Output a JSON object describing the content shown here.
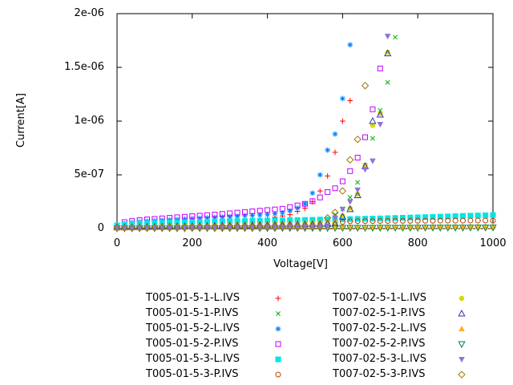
{
  "figure": {
    "background": "#ffffff",
    "axis_color": "#000000"
  },
  "chart_data": {
    "type": "scatter",
    "title": "",
    "xlabel": "Voltage[V]",
    "ylabel": "Current[A]",
    "xlim": [
      0,
      1000
    ],
    "ylim": [
      0,
      2e-06
    ],
    "x_ticks": [
      0,
      200,
      400,
      600,
      800,
      1000
    ],
    "x_tick_labels": [
      "0",
      "200",
      "400",
      "600",
      "800",
      "1000"
    ],
    "y_ticks": [
      0,
      5e-07,
      1e-06,
      1.5e-06,
      2e-06
    ],
    "y_tick_labels": [
      "0",
      "5e-07",
      "1e-06",
      "1.5e-06",
      "2e-06"
    ],
    "grid": false,
    "legend_position": "below-plot-two-columns",
    "values_unit": "nA (1e-9 A)",
    "series": [
      {
        "name": "T005-01-5-1-L.IVS",
        "marker": "plus",
        "color": "#ff0000",
        "v_start": 0,
        "v_step": 20,
        "values_nA": [
          10,
          25,
          32,
          38,
          43,
          47,
          51,
          55,
          58,
          61,
          64,
          67,
          70,
          73,
          76,
          79,
          82,
          85,
          88,
          92,
          96,
          105,
          118,
          130,
          160,
          190,
          250,
          350,
          490,
          710,
          1000,
          1190
        ]
      },
      {
        "name": "T005-01-5-1-P.IVS",
        "marker": "cross",
        "color": "#00b400",
        "v_start": 0,
        "v_step": 20,
        "values_nA": [
          8,
          18,
          22,
          25,
          27,
          29,
          31,
          33,
          35,
          37,
          39,
          41,
          43,
          45,
          47,
          49,
          51,
          53,
          55,
          57,
          59,
          61,
          63,
          65,
          67,
          69,
          71,
          74,
          90,
          130,
          185,
          290,
          430,
          590,
          840,
          1100,
          1360,
          1780
        ]
      },
      {
        "name": "T005-01-5-2-L.IVS",
        "marker": "asterisk",
        "color": "#0080ff",
        "v_start": 0,
        "v_step": 20,
        "values_nA": [
          20,
          45,
          55,
          62,
          68,
          72,
          76,
          80,
          84,
          88,
          92,
          96,
          100,
          104,
          108,
          112,
          116,
          120,
          124,
          128,
          132,
          138,
          147,
          165,
          190,
          230,
          330,
          500,
          730,
          880,
          1210,
          1710
        ]
      },
      {
        "name": "T005-01-5-2-P.IVS",
        "marker": "square-open",
        "color": "#c000ff",
        "v_start": 0,
        "v_step": 20,
        "values_nA": [
          25,
          60,
          70,
          78,
          85,
          90,
          95,
          100,
          105,
          110,
          115,
          120,
          125,
          130,
          136,
          142,
          148,
          154,
          160,
          166,
          172,
          178,
          184,
          200,
          215,
          230,
          255,
          290,
          340,
          375,
          440,
          535,
          660,
          850,
          1110,
          1490
        ]
      },
      {
        "name": "T005-01-5-3-L.IVS",
        "marker": "square-filled",
        "color": "#00e5e5",
        "v_start": 0,
        "v_step": 20,
        "values_nA": [
          30,
          40,
          44,
          47,
          50,
          52,
          54,
          56,
          58,
          60,
          61,
          62,
          64,
          65,
          66,
          68,
          69,
          70,
          72,
          73,
          74,
          76,
          77,
          78,
          80,
          81,
          82,
          84,
          85,
          86,
          88,
          89,
          90,
          92,
          93,
          95,
          97,
          99,
          101,
          103,
          105,
          107,
          109,
          111,
          113,
          116,
          118,
          120,
          122,
          124,
          126
        ]
      },
      {
        "name": "T005-01-5-3-P.IVS",
        "marker": "circle-open",
        "color": "#c04000",
        "v_start": 0,
        "v_step": 20,
        "values_nA": [
          8,
          8,
          9,
          9,
          10,
          10,
          10,
          11,
          11,
          12,
          12,
          12,
          13,
          13,
          14,
          14,
          14,
          15,
          15,
          16,
          16,
          16,
          17,
          17,
          18,
          18,
          18,
          19,
          40,
          55,
          62,
          68,
          69,
          70,
          70,
          71,
          71,
          72,
          72,
          72,
          73,
          73,
          73,
          74,
          74,
          74,
          74,
          75,
          75,
          75,
          75
        ]
      },
      {
        "name": "T007-02-5-1-L.IVS",
        "marker": "circle-filled",
        "color": "#d8d800",
        "v_start": 0,
        "v_step": 20,
        "values_nA": [
          12,
          14,
          15,
          17,
          18,
          20,
          22,
          23,
          25,
          26,
          28,
          30,
          31,
          33,
          34,
          36,
          38,
          39,
          41,
          42,
          44,
          46,
          47,
          49,
          50,
          52,
          54,
          55,
          57,
          58,
          120,
          190,
          320,
          590,
          960,
          1070,
          1640
        ]
      },
      {
        "name": "T007-02-5-1-P.IVS",
        "marker": "triangle-up-open",
        "color": "#3333b4",
        "v_start": 0,
        "v_step": 20,
        "values_nA": [
          10,
          11,
          12,
          14,
          15,
          16,
          17,
          18,
          20,
          21,
          22,
          23,
          24,
          26,
          27,
          28,
          29,
          30,
          32,
          33,
          34,
          35,
          36,
          38,
          39,
          40,
          41,
          42,
          44,
          45,
          110,
          180,
          310,
          580,
          1000,
          1060,
          1630
        ]
      },
      {
        "name": "T007-02-5-2-L.IVS",
        "marker": "triangle-up-filled",
        "color": "#ffae20",
        "v_start": 0,
        "v_step": 20,
        "values_nA": [
          5,
          5,
          6,
          6,
          6,
          7,
          7,
          7,
          7,
          8,
          8,
          8,
          9,
          9,
          9,
          10,
          10,
          10,
          10,
          11,
          11,
          11,
          12,
          12,
          12,
          13,
          13,
          13,
          13,
          14,
          14,
          14,
          15,
          15,
          15,
          16,
          16,
          16,
          16,
          17,
          17,
          17,
          18,
          18,
          18,
          19,
          19,
          19,
          19,
          20,
          20
        ]
      },
      {
        "name": "T007-02-5-2-P.IVS",
        "marker": "triangle-down-open",
        "color": "#008040",
        "v_start": 0,
        "v_step": 20,
        "values_nA": [
          2,
          2,
          2,
          2,
          3,
          3,
          3,
          3,
          3,
          3,
          4,
          4,
          4,
          4,
          4,
          4,
          5,
          5,
          5,
          5,
          5,
          5,
          6,
          6,
          6,
          6,
          6,
          6,
          6,
          7,
          7,
          7,
          7,
          7,
          7,
          8,
          8,
          8,
          8,
          8,
          8,
          9,
          9,
          9,
          9,
          9,
          9,
          10,
          10,
          10,
          10
        ]
      },
      {
        "name": "T007-02-5-3-L.IVS",
        "marker": "triangle-down-filled",
        "color": "#9370db",
        "v_start": 0,
        "v_step": 20,
        "values_nA": [
          5,
          6,
          6,
          7,
          7,
          8,
          9,
          9,
          10,
          10,
          11,
          12,
          12,
          13,
          13,
          14,
          15,
          15,
          16,
          16,
          17,
          18,
          18,
          19,
          19,
          20,
          21,
          21,
          22,
          100,
          180,
          250,
          360,
          550,
          630,
          970,
          1790
        ]
      },
      {
        "name": "T007-02-5-3-P.IVS",
        "marker": "diamond-open",
        "color": "#a27608",
        "v_start": 0,
        "v_step": 20,
        "values_nA": [
          5,
          6,
          6,
          7,
          7,
          8,
          9,
          9,
          10,
          10,
          11,
          12,
          12,
          13,
          13,
          14,
          15,
          15,
          16,
          16,
          17,
          18,
          18,
          19,
          19,
          20,
          21,
          21,
          100,
          150,
          350,
          640,
          830,
          1330
        ]
      }
    ]
  }
}
